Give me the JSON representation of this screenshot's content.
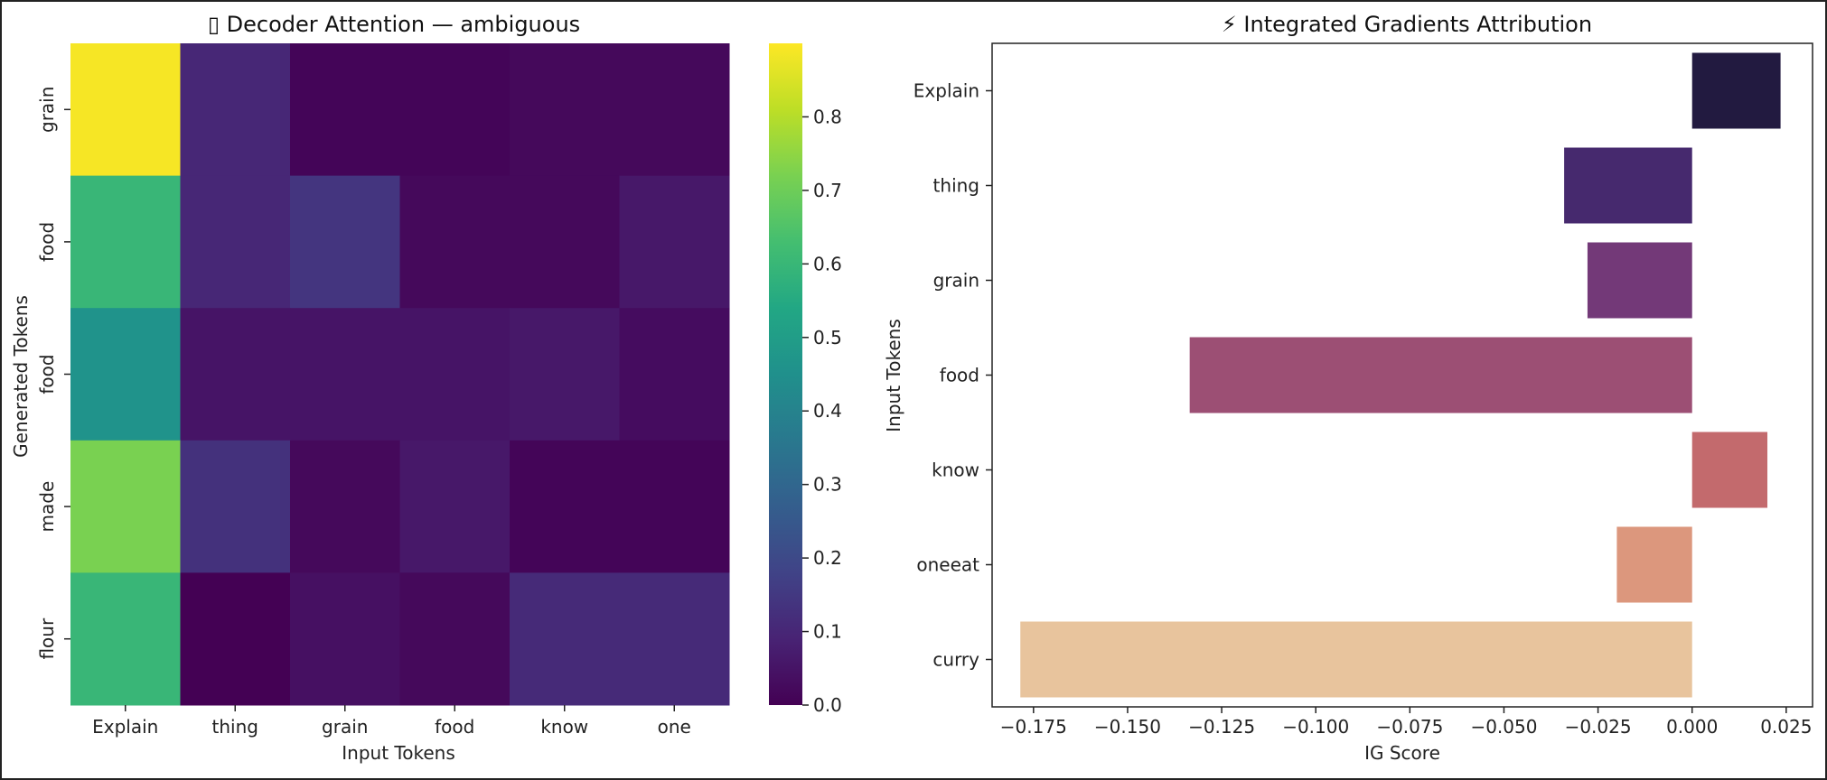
{
  "chart_data": [
    {
      "type": "heatmap",
      "title": "▯ Decoder Attention — ambiguous",
      "xlabel": "Input Tokens",
      "ylabel": "Generated Tokens",
      "x_categories": [
        "Explain",
        "thing",
        "grain",
        "food",
        "know",
        "one"
      ],
      "y_categories": [
        "grain",
        "food",
        "food",
        "made",
        "flour"
      ],
      "values": [
        [
          0.89,
          0.1,
          0.01,
          0.01,
          0.02,
          0.02
        ],
        [
          0.6,
          0.1,
          0.14,
          0.02,
          0.02,
          0.06
        ],
        [
          0.46,
          0.05,
          0.05,
          0.05,
          0.06,
          0.03
        ],
        [
          0.72,
          0.13,
          0.02,
          0.06,
          0.01,
          0.01
        ],
        [
          0.6,
          0.0,
          0.04,
          0.02,
          0.11,
          0.11
        ]
      ],
      "colormap": "viridis",
      "colorbar": {
        "min": 0.0,
        "max": 0.9,
        "ticks": [
          "0.0",
          "0.1",
          "0.2",
          "0.3",
          "0.4",
          "0.5",
          "0.6",
          "0.7",
          "0.8"
        ]
      }
    },
    {
      "type": "bar",
      "orientation": "horizontal",
      "title": "⚡ Integrated Gradients Attribution",
      "xlabel": "IG Score",
      "ylabel": "Input Tokens",
      "categories": [
        "Explain",
        "thing",
        "grain",
        "food",
        "know",
        "oneeat",
        "curry"
      ],
      "values": [
        0.0235,
        -0.034,
        -0.0278,
        -0.1335,
        0.02,
        -0.02,
        -0.1785
      ],
      "colors": [
        "#221a40",
        "#46296e",
        "#733978",
        "#9c4f74",
        "#c36a6d",
        "#dc977d",
        "#e8c49d"
      ],
      "xlim": [
        -0.186,
        0.032
      ],
      "x_ticks": [
        "−0.175",
        "−0.150",
        "−0.125",
        "−0.100",
        "−0.075",
        "−0.050",
        "−0.025",
        "0.000",
        "0.025"
      ],
      "x_tick_values": [
        -0.175,
        -0.15,
        -0.125,
        -0.1,
        -0.075,
        -0.05,
        -0.025,
        0.0,
        0.025
      ]
    }
  ]
}
